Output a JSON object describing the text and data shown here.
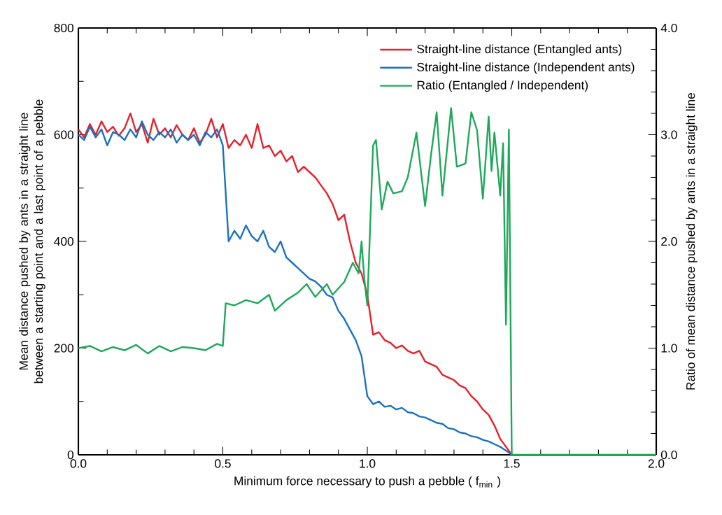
{
  "chart_data": {
    "type": "line",
    "xlabel": "Minimum force necessary to push a pebble ( f$_{min}$ )",
    "ylabel": "Mean distance pushed by ants in a straight line between a starting point and a last point of a pebble",
    "y2label": "Ratio of mean distance pushed by ants in a straight line",
    "xlim": [
      0,
      2
    ],
    "ylim": [
      0,
      800
    ],
    "y2lim": [
      0,
      4
    ],
    "xticks": [
      {
        "value": 0,
        "label": "0.0"
      },
      {
        "value": 0.5,
        "label": "0.5"
      },
      {
        "value": 1,
        "label": "1.0"
      },
      {
        "value": 1.5,
        "label": "1.5"
      },
      {
        "value": 2,
        "label": "2.0"
      }
    ],
    "yticks": [
      0,
      200,
      400,
      600,
      800
    ],
    "y2ticks": [
      {
        "value": 0,
        "label": "0.0"
      },
      {
        "value": 1,
        "label": "1.0"
      },
      {
        "value": 2,
        "label": "2.0"
      },
      {
        "value": 3,
        "label": "3.0"
      },
      {
        "value": 4,
        "label": "4.0"
      }
    ],
    "legend": "top right",
    "grid": false,
    "marker": "none",
    "line_style": "solid",
    "series": [
      {
        "name": "Straight-line distance (Entangled ants)",
        "color": "#e8202a",
        "x": [
          0,
          0.02,
          0.04,
          0.06,
          0.08,
          0.1,
          0.12,
          0.14,
          0.16,
          0.18,
          0.2,
          0.22,
          0.24,
          0.26,
          0.28,
          0.3,
          0.32,
          0.34,
          0.36,
          0.38,
          0.4,
          0.42,
          0.44,
          0.46,
          0.48,
          0.5,
          0.52,
          0.54,
          0.56,
          0.58,
          0.6,
          0.62,
          0.64,
          0.66,
          0.68,
          0.7,
          0.72,
          0.74,
          0.76,
          0.78,
          0.8,
          0.82,
          0.84,
          0.86,
          0.88,
          0.9,
          0.92,
          0.94,
          0.96,
          0.98,
          1.0,
          1.02,
          1.04,
          1.06,
          1.08,
          1.1,
          1.12,
          1.14,
          1.16,
          1.18,
          1.2,
          1.22,
          1.24,
          1.26,
          1.28,
          1.3,
          1.32,
          1.34,
          1.36,
          1.38,
          1.4,
          1.42,
          1.44,
          1.46,
          1.48,
          1.5
        ],
        "values": [
          610,
          595,
          620,
          600,
          625,
          605,
          615,
          598,
          612,
          640,
          605,
          620,
          585,
          630,
          600,
          612,
          595,
          618,
          600,
          590,
          612,
          585,
          600,
          630,
          595,
          620,
          575,
          590,
          580,
          600,
          575,
          620,
          575,
          580,
          560,
          570,
          550,
          560,
          530,
          540,
          530,
          520,
          505,
          490,
          470,
          440,
          450,
          400,
          360,
          340,
          300,
          225,
          230,
          215,
          210,
          200,
          205,
          195,
          190,
          195,
          175,
          170,
          165,
          150,
          145,
          140,
          130,
          125,
          110,
          100,
          85,
          75,
          55,
          30,
          15,
          0
        ]
      },
      {
        "name": "Straight-line distance (Independent ants)",
        "color": "#1a72c0",
        "x": [
          0,
          0.02,
          0.04,
          0.06,
          0.08,
          0.1,
          0.12,
          0.14,
          0.16,
          0.18,
          0.2,
          0.22,
          0.24,
          0.26,
          0.28,
          0.3,
          0.32,
          0.34,
          0.36,
          0.38,
          0.4,
          0.42,
          0.44,
          0.46,
          0.48,
          0.5,
          0.52,
          0.54,
          0.56,
          0.58,
          0.6,
          0.62,
          0.64,
          0.66,
          0.68,
          0.7,
          0.72,
          0.74,
          0.76,
          0.78,
          0.8,
          0.82,
          0.84,
          0.86,
          0.88,
          0.9,
          0.92,
          0.94,
          0.96,
          0.98,
          1.0,
          1.02,
          1.04,
          1.06,
          1.08,
          1.1,
          1.12,
          1.14,
          1.16,
          1.18,
          1.2,
          1.22,
          1.24,
          1.26,
          1.28,
          1.3,
          1.32,
          1.34,
          1.36,
          1.38,
          1.4,
          1.42,
          1.44,
          1.46,
          1.48,
          1.5
        ],
        "values": [
          600,
          590,
          615,
          595,
          610,
          580,
          605,
          600,
          590,
          610,
          595,
          625,
          600,
          590,
          605,
          595,
          610,
          585,
          600,
          590,
          600,
          580,
          605,
          595,
          610,
          580,
          400,
          420,
          405,
          430,
          410,
          400,
          420,
          390,
          380,
          400,
          370,
          360,
          350,
          340,
          330,
          325,
          315,
          300,
          295,
          270,
          255,
          235,
          215,
          185,
          110,
          95,
          100,
          90,
          92,
          85,
          88,
          80,
          78,
          72,
          70,
          65,
          60,
          58,
          50,
          48,
          42,
          40,
          35,
          33,
          28,
          25,
          20,
          15,
          8,
          0
        ]
      },
      {
        "name": "Ratio (Entangled / Independent)",
        "color": "#1fa85a",
        "axis": "y2",
        "x": [
          0,
          0.04,
          0.08,
          0.12,
          0.16,
          0.2,
          0.24,
          0.28,
          0.32,
          0.36,
          0.4,
          0.44,
          0.48,
          0.5,
          0.51,
          0.54,
          0.58,
          0.62,
          0.66,
          0.68,
          0.72,
          0.76,
          0.79,
          0.82,
          0.86,
          0.88,
          0.9,
          0.92,
          0.95,
          0.97,
          0.98,
          0.99,
          1.0,
          1.02,
          1.03,
          1.05,
          1.07,
          1.09,
          1.12,
          1.14,
          1.17,
          1.2,
          1.22,
          1.24,
          1.26,
          1.29,
          1.31,
          1.34,
          1.36,
          1.38,
          1.4,
          1.42,
          1.43,
          1.44,
          1.46,
          1.47,
          1.48,
          1.49,
          1.5,
          2.0
        ],
        "values": [
          1.0,
          1.02,
          0.97,
          1.01,
          0.98,
          1.03,
          0.95,
          1.02,
          0.97,
          1.01,
          1.0,
          0.98,
          1.04,
          1.02,
          1.42,
          1.4,
          1.45,
          1.42,
          1.5,
          1.35,
          1.45,
          1.52,
          1.6,
          1.48,
          1.6,
          1.5,
          1.56,
          1.62,
          1.8,
          1.7,
          2.0,
          1.64,
          1.4,
          2.9,
          2.95,
          2.3,
          2.56,
          2.45,
          2.47,
          2.6,
          3.02,
          2.33,
          2.8,
          3.21,
          2.43,
          3.25,
          2.7,
          2.73,
          3.21,
          3.04,
          2.4,
          3.17,
          2.66,
          3.02,
          2.43,
          2.92,
          1.22,
          3.05,
          0,
          0
        ]
      }
    ]
  }
}
